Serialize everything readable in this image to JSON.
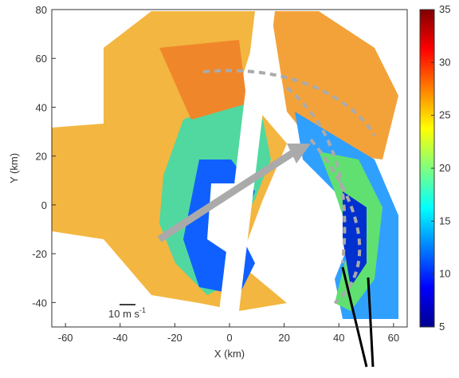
{
  "chart_data": {
    "type": "heatmap",
    "x_label": "X (km)",
    "y_label": "Y (km)",
    "xlim": [
      -65,
      65
    ],
    "xticks": [
      -60,
      -40,
      -20,
      0,
      20,
      40,
      60
    ],
    "ylim": [
      -50,
      80
    ],
    "yticks": [
      -40,
      -20,
      0,
      20,
      40,
      60,
      80
    ],
    "colormap": "jet",
    "clim": [
      5,
      35
    ],
    "cticks": [
      5,
      10,
      15,
      20,
      25,
      30,
      35
    ],
    "annotation": {
      "text": "10 m s",
      "superscript": "-1"
    }
  }
}
